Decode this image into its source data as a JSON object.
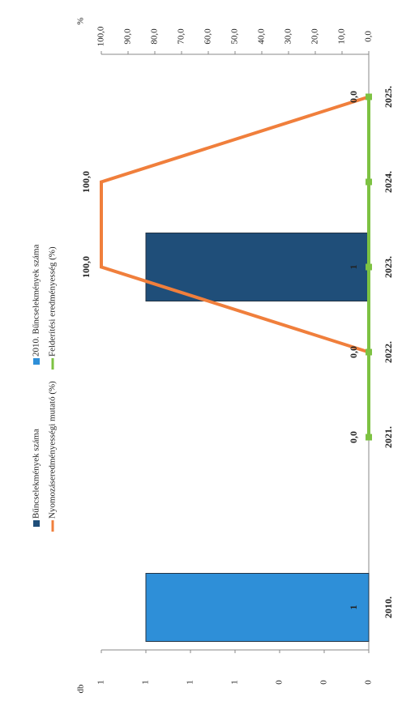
{
  "chart_data": {
    "type": "bar-line",
    "categories": [
      "2010.",
      null,
      "2021.",
      "2022.",
      "2023.",
      "2024.",
      "2025."
    ],
    "series": [
      {
        "name": "Bűncselekmények száma",
        "color": "#1f4e79",
        "type": "bar",
        "axis": "y",
        "values": [
          null,
          null,
          null,
          null,
          1,
          null,
          null
        ]
      },
      {
        "name": "2010. Bűncselekmények száma",
        "color": "#2e8fd8",
        "type": "bar",
        "axis": "y",
        "values": [
          1,
          null,
          null,
          null,
          null,
          null,
          null
        ]
      },
      {
        "name": "Nyomozáseredményességi mutató (%)",
        "color": "#f07f3c",
        "type": "line",
        "axis": "y2",
        "values": [
          null,
          null,
          null,
          0,
          100,
          100,
          0
        ],
        "value_labels": [
          null,
          null,
          null,
          "0,0",
          "100,0",
          "100,0",
          "0,0"
        ]
      },
      {
        "name": "Felderítési eredményesség (%)",
        "color": "#7dc242",
        "type": "line",
        "axis": "y2",
        "values": [
          null,
          null,
          0,
          0,
          0,
          0,
          0
        ],
        "value_labels": [
          null,
          null,
          "0,0",
          null,
          null,
          null,
          null
        ]
      }
    ],
    "y_label": "db",
    "y2_label": "%",
    "ylim": [
      0,
      1.2
    ],
    "yticks": [
      {
        "value": 0,
        "label": "0"
      },
      {
        "value": 0.2,
        "label": "0"
      },
      {
        "value": 0.4,
        "label": "0"
      },
      {
        "value": 0.6,
        "label": "1"
      },
      {
        "value": 0.8,
        "label": "1"
      },
      {
        "value": 1,
        "label": "1"
      },
      {
        "value": 1.2,
        "label": "1"
      }
    ],
    "y2lim": [
      0,
      100
    ],
    "y2ticks": [
      {
        "value": 0,
        "label": "0,0"
      },
      {
        "value": 10,
        "label": "10,0"
      },
      {
        "value": 20,
        "label": "20,0"
      },
      {
        "value": 30,
        "label": "30,0"
      },
      {
        "value": 40,
        "label": "40,0"
      },
      {
        "value": 50,
        "label": "50,0"
      },
      {
        "value": 60,
        "label": "60,0"
      },
      {
        "value": 70,
        "label": "70,0"
      },
      {
        "value": 80,
        "label": "80,0"
      },
      {
        "value": 90,
        "label": "90,0"
      },
      {
        "value": 100,
        "label": "100,0"
      }
    ],
    "grid": false
  }
}
